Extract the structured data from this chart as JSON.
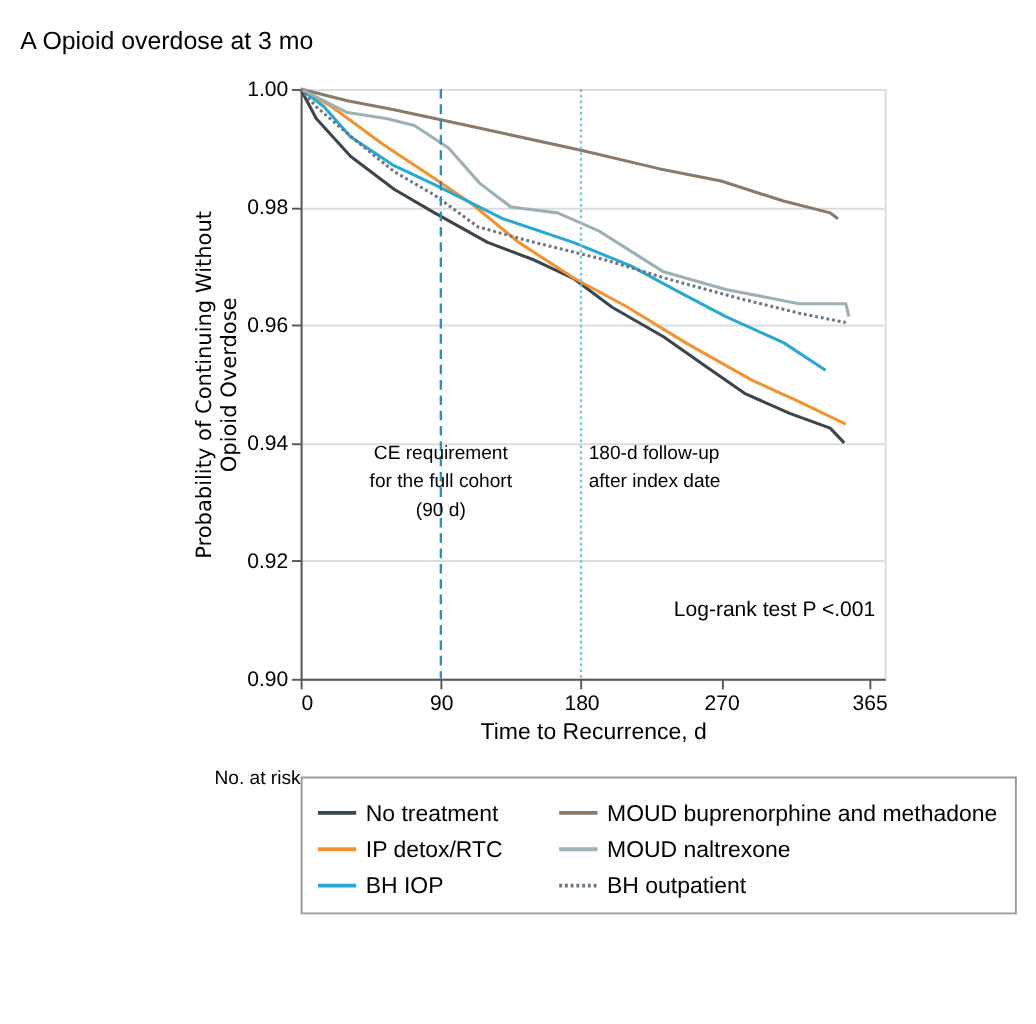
{
  "chart_data": {
    "type": "line",
    "title": "A Opioid overdose at 3 mo",
    "xlabel": "Time to Recurrence, d",
    "ylabel": "Probability of Continuing Without\nOpioid Overdose",
    "xlim": [
      0,
      375
    ],
    "xticks": [
      0,
      90,
      180,
      270,
      365
    ],
    "ylim": [
      0.9,
      1.0
    ],
    "yticks": [
      {
        "value": 0.9,
        "label": "0.90"
      },
      {
        "value": 0.92,
        "label": "0.92"
      },
      {
        "value": 0.94,
        "label": "0.94"
      },
      {
        "value": 0.96,
        "label": "0.96"
      },
      {
        "value": 0.98,
        "label": "0.98"
      },
      {
        "value": 1.0,
        "label": "1.00"
      }
    ],
    "grid": "y",
    "legend": "bottom",
    "series": [
      {
        "name": "No treatment",
        "color": "#3b464c",
        "line_style": "solid",
        "x": [
          0,
          10,
          32,
          60,
          86,
          120,
          150,
          175,
          200,
          233,
          260,
          285,
          314,
          340,
          349
        ],
        "values": [
          1.0,
          0.995,
          0.9886,
          0.983,
          0.979,
          0.974,
          0.971,
          0.9679,
          0.963,
          0.958,
          0.953,
          0.9484,
          0.945,
          0.9425,
          0.94
        ]
      },
      {
        "name": "IP detox/RTC",
        "color": "#f39232",
        "line_style": "solid",
        "x": [
          0,
          20,
          53,
          85,
          110,
          140,
          175,
          210,
          247,
          290,
          320,
          350
        ],
        "values": [
          1.0,
          0.997,
          0.9906,
          0.985,
          0.9805,
          0.974,
          0.968,
          0.963,
          0.957,
          0.9506,
          0.947,
          0.9432
        ]
      },
      {
        "name": "BH IOP",
        "color": "#2aa8d4",
        "line_style": "solid",
        "x": [
          0,
          15,
          32,
          60,
          86,
          130,
          175,
          212,
          240,
          273,
          310,
          337
        ],
        "values": [
          1.0,
          0.997,
          0.9919,
          0.987,
          0.9838,
          0.978,
          0.974,
          0.97,
          0.966,
          0.9614,
          0.957,
          0.9523
        ]
      },
      {
        "name": "MOUD buprenorphine and methadone",
        "color": "#8b7a6a",
        "line_style": "solid",
        "x": [
          0,
          30,
          60,
          90,
          130,
          180,
          230,
          270,
          310,
          340,
          345
        ],
        "values": [
          1.0,
          0.998,
          0.9965,
          0.9948,
          0.9925,
          0.9896,
          0.9865,
          0.9844,
          0.981,
          0.979,
          0.978
        ]
      },
      {
        "name": "MOUD naltrexone",
        "color": "#9db0b6",
        "line_style": "solid",
        "x": [
          0,
          30,
          55,
          73,
          95,
          115,
          135,
          165,
          191,
          215,
          233,
          273,
          320,
          350,
          352
        ],
        "values": [
          1.0,
          0.996,
          0.995,
          0.9938,
          0.99,
          0.984,
          0.98,
          0.979,
          0.976,
          0.972,
          0.969,
          0.966,
          0.9636,
          0.9636,
          0.9614
        ]
      },
      {
        "name": "BH outpatient",
        "color": "#6b7780",
        "line_style": "dotted",
        "x": [
          0,
          10,
          32,
          60,
          86,
          114,
          150,
          196,
          233,
          280,
          320,
          350
        ],
        "values": [
          1.0,
          0.997,
          0.992,
          0.986,
          0.982,
          0.9766,
          0.974,
          0.971,
          0.968,
          0.9646,
          0.962,
          0.9604
        ]
      }
    ],
    "ref_lines": [
      {
        "axis": "x",
        "value": 90,
        "label": "CE requirement\nfor the full cohort\n(90 d)",
        "color": "#2a8fc0",
        "line_style": "dashed"
      },
      {
        "axis": "x",
        "value": 180,
        "label": "180-d follow-up\nafter index date",
        "color": "#7cc6e0",
        "line_style": "dotted"
      }
    ],
    "annotations": [
      "Log-rank test P <.001",
      "No. at risk"
    ]
  }
}
